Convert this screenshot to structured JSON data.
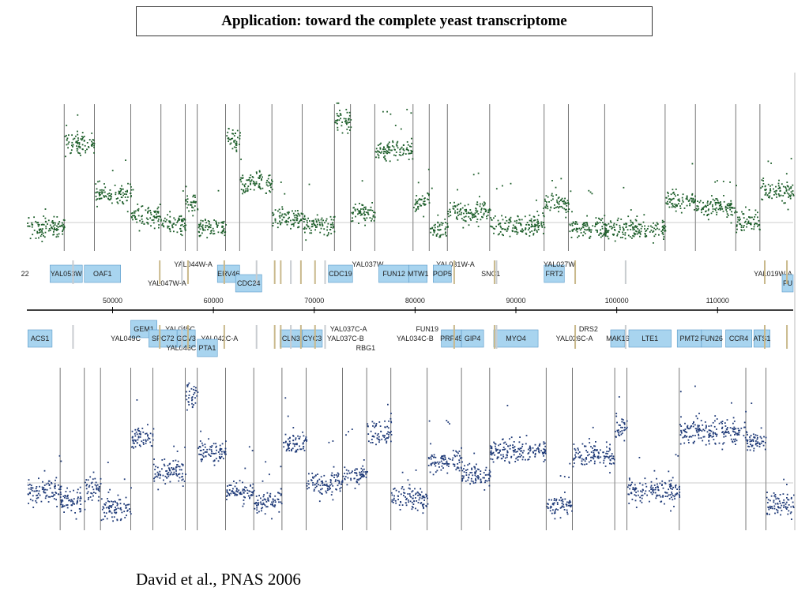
{
  "title": "Application: toward the complete yeast transcriptome",
  "citation": "David et  al., PNAS 2006",
  "colors": {
    "forward_points": "#1d5e2a",
    "reverse_points": "#1f3a78",
    "gene_box": "#a8d4ef",
    "gene_border": "#5a9ac8",
    "feature_tan": "#c9b98c",
    "feature_gray": "#c8ccd0"
  },
  "chart_data": {
    "type": "scatter",
    "title": "",
    "xlabel": "",
    "ylabel": "",
    "xlim": [
      41500,
      117500
    ],
    "grid": false,
    "ticks": [
      {
        "value": 50000,
        "label": "50000"
      },
      {
        "value": 60000,
        "label": "60000"
      },
      {
        "value": 70000,
        "label": "70000"
      },
      {
        "value": 80000,
        "label": "80000"
      },
      {
        "value": 90000,
        "label": "90000"
      },
      {
        "value": 100000,
        "label": "100000"
      },
      {
        "value": 110000,
        "label": "110000"
      }
    ],
    "series": [
      {
        "strand": "forward",
        "color": "#1d5e2a",
        "ylim": [
          0,
          10
        ],
        "segments": [
          [
            41500,
            45200,
            1.6
          ],
          [
            45200,
            48200,
            7.2
          ],
          [
            48200,
            51800,
            3.8
          ],
          [
            51800,
            54800,
            2.4
          ],
          [
            54800,
            57200,
            1.8
          ],
          [
            57200,
            58400,
            3.2
          ],
          [
            58400,
            61200,
            1.6
          ],
          [
            61200,
            62600,
            7.5
          ],
          [
            62600,
            65800,
            4.6
          ],
          [
            65800,
            68800,
            2.2
          ],
          [
            68800,
            72000,
            1.8
          ],
          [
            72000,
            73600,
            8.8
          ],
          [
            73600,
            76000,
            2.6
          ],
          [
            76000,
            79800,
            6.8
          ],
          [
            79800,
            81400,
            3.4
          ],
          [
            81400,
            83200,
            1.6
          ],
          [
            83200,
            87400,
            2.6
          ],
          [
            87400,
            92800,
            1.8
          ],
          [
            92800,
            95200,
            3.2
          ],
          [
            95200,
            98800,
            1.6
          ],
          [
            98800,
            104800,
            1.5
          ],
          [
            104800,
            107800,
            3.4
          ],
          [
            107800,
            111800,
            3.0
          ],
          [
            111800,
            114200,
            2.0
          ],
          [
            114200,
            117500,
            4.0
          ]
        ]
      },
      {
        "strand": "reverse",
        "color": "#1f3a78",
        "ylim": [
          0,
          10
        ],
        "segments": [
          [
            41500,
            44800,
            2.4
          ],
          [
            44800,
            47200,
            1.8
          ],
          [
            47200,
            48800,
            2.6
          ],
          [
            48800,
            51800,
            1.4
          ],
          [
            51800,
            54000,
            5.6
          ],
          [
            54000,
            57200,
            3.6
          ],
          [
            57200,
            58400,
            8.2
          ],
          [
            58400,
            61200,
            4.8
          ],
          [
            61200,
            64000,
            2.4
          ],
          [
            64000,
            66800,
            1.8
          ],
          [
            66800,
            69200,
            5.4
          ],
          [
            69200,
            72800,
            2.8
          ],
          [
            72800,
            75200,
            3.4
          ],
          [
            75200,
            77600,
            6.0
          ],
          [
            77600,
            81200,
            2.0
          ],
          [
            81200,
            84600,
            4.2
          ],
          [
            84600,
            87400,
            3.4
          ],
          [
            87400,
            93000,
            4.8
          ],
          [
            93000,
            95600,
            1.6
          ],
          [
            95600,
            99800,
            4.6
          ],
          [
            99800,
            101000,
            6.2
          ],
          [
            101000,
            106200,
            2.4
          ],
          [
            106200,
            112800,
            6.0
          ],
          [
            112800,
            114800,
            5.4
          ],
          [
            114800,
            117500,
            1.6
          ]
        ]
      }
    ],
    "genes_top": [
      {
        "label": "22",
        "start": 41200,
        "end": 41300,
        "row": 0,
        "kind": "label"
      },
      {
        "label": "YAL053W",
        "start": 43800,
        "end": 47000,
        "row": 0,
        "kind": "gene"
      },
      {
        "label": "OAF1",
        "start": 47200,
        "end": 50800,
        "row": 0,
        "kind": "gene"
      },
      {
        "label": "YAL047W-A",
        "start": 53200,
        "end": 57600,
        "row": 1,
        "kind": "label"
      },
      {
        "label": "YAL044W-A",
        "start": 55800,
        "end": 60200,
        "row": -1,
        "kind": "label"
      },
      {
        "label": "ERV46",
        "start": 60400,
        "end": 62600,
        "row": 0,
        "kind": "gene"
      },
      {
        "label": "CDC24",
        "start": 62200,
        "end": 64800,
        "row": 1,
        "kind": "gene"
      },
      {
        "label": "CDC19",
        "start": 71400,
        "end": 73800,
        "row": 0,
        "kind": "gene"
      },
      {
        "label": "YAL037W",
        "start": 73600,
        "end": 77000,
        "row": -1,
        "kind": "label"
      },
      {
        "label": "FUN12",
        "start": 76400,
        "end": 79400,
        "row": 0,
        "kind": "gene"
      },
      {
        "label": "MTW1",
        "start": 79400,
        "end": 81200,
        "row": 0,
        "kind": "gene"
      },
      {
        "label": "YAL031W-A",
        "start": 81800,
        "end": 86200,
        "row": -1,
        "kind": "label"
      },
      {
        "label": "POP5",
        "start": 81800,
        "end": 83600,
        "row": 0,
        "kind": "gene"
      },
      {
        "label": "SNC1",
        "start": 86400,
        "end": 88600,
        "row": 0,
        "kind": "label"
      },
      {
        "label": "FRT2",
        "start": 92800,
        "end": 94800,
        "row": 0,
        "kind": "gene"
      },
      {
        "label": "YAL027W",
        "start": 92400,
        "end": 96200,
        "row": -1,
        "kind": "label"
      },
      {
        "label": "YAL019W-A",
        "start": 113400,
        "end": 117600,
        "row": 0,
        "kind": "label"
      },
      {
        "label": "FU",
        "start": 116400,
        "end": 117500,
        "row": 1,
        "kind": "gene"
      }
    ],
    "genes_bottom": [
      {
        "label": "ACS1",
        "start": 41600,
        "end": 44000,
        "row": 0,
        "kind": "gene"
      },
      {
        "label": "GEM1",
        "start": 51800,
        "end": 54400,
        "row": -1,
        "kind": "gene"
      },
      {
        "label": "YAL049C",
        "start": 49400,
        "end": 53200,
        "row": 0,
        "kind": "label"
      },
      {
        "label": "YAL045C",
        "start": 54800,
        "end": 58600,
        "row": -1,
        "kind": "label"
      },
      {
        "label": "SPC72",
        "start": 53600,
        "end": 56400,
        "row": 0,
        "kind": "gene"
      },
      {
        "label": "GCV3",
        "start": 56400,
        "end": 58200,
        "row": 0,
        "kind": "gene"
      },
      {
        "label": "YAL046C",
        "start": 55200,
        "end": 58400,
        "row": 1,
        "kind": "label"
      },
      {
        "label": "YAL042C-A",
        "start": 58600,
        "end": 62600,
        "row": 0,
        "kind": "label"
      },
      {
        "label": "PTA1",
        "start": 58400,
        "end": 60400,
        "row": 1,
        "kind": "gene"
      },
      {
        "label": "CLN3",
        "start": 66600,
        "end": 68800,
        "row": 0,
        "kind": "gene"
      },
      {
        "label": "CYC3",
        "start": 68800,
        "end": 70800,
        "row": 0,
        "kind": "gene"
      },
      {
        "label": "YAL037C-A",
        "start": 71200,
        "end": 75600,
        "row": -1,
        "kind": "label"
      },
      {
        "label": "YAL037C-B",
        "start": 71000,
        "end": 75200,
        "row": 0,
        "kind": "label"
      },
      {
        "label": "RBG1",
        "start": 74200,
        "end": 76000,
        "row": 1,
        "kind": "label"
      },
      {
        "label": "FUN19",
        "start": 80000,
        "end": 82400,
        "row": -1,
        "kind": "label"
      },
      {
        "label": "YAL034C-B",
        "start": 77600,
        "end": 82400,
        "row": 0,
        "kind": "label"
      },
      {
        "label": "PRP45",
        "start": 82600,
        "end": 84600,
        "row": 0,
        "kind": "gene"
      },
      {
        "label": "GIP4",
        "start": 84600,
        "end": 86800,
        "row": 0,
        "kind": "gene"
      },
      {
        "label": "MYO4",
        "start": 87800,
        "end": 92200,
        "row": 0,
        "kind": "gene"
      },
      {
        "label": "DRS2",
        "start": 95600,
        "end": 98800,
        "row": -1,
        "kind": "label"
      },
      {
        "label": "YAL026C-A",
        "start": 93400,
        "end": 98200,
        "row": 0,
        "kind": "label"
      },
      {
        "label": "MAK16",
        "start": 99400,
        "end": 100800,
        "row": 0,
        "kind": "gene"
      },
      {
        "label": "LTE1",
        "start": 101200,
        "end": 105400,
        "row": 0,
        "kind": "gene"
      },
      {
        "label": "PMT2",
        "start": 106000,
        "end": 108400,
        "row": 0,
        "kind": "gene"
      },
      {
        "label": "FUN26",
        "start": 108400,
        "end": 110400,
        "row": 0,
        "kind": "gene"
      },
      {
        "label": "CCR4",
        "start": 110800,
        "end": 113400,
        "row": 0,
        "kind": "gene"
      },
      {
        "label": "ATS1",
        "start": 113600,
        "end": 115200,
        "row": 0,
        "kind": "gene"
      }
    ]
  }
}
